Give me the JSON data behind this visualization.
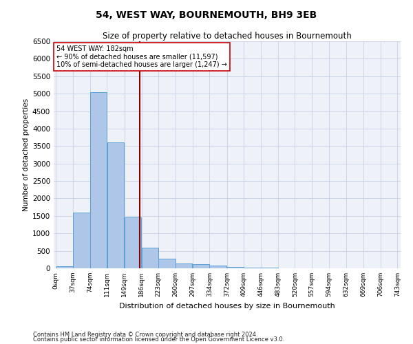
{
  "title": "54, WEST WAY, BOURNEMOUTH, BH9 3EB",
  "subtitle": "Size of property relative to detached houses in Bournemouth",
  "xlabel": "Distribution of detached houses by size in Bournemouth",
  "ylabel": "Number of detached properties",
  "footnote1": "Contains HM Land Registry data © Crown copyright and database right 2024.",
  "footnote2": "Contains public sector information licensed under the Open Government Licence v3.0.",
  "bin_edges": [
    0,
    37,
    74,
    111,
    149,
    186,
    223,
    260,
    297,
    334,
    372,
    409,
    446,
    483,
    520,
    557,
    594,
    632,
    669,
    706,
    743
  ],
  "bar_heights": [
    50,
    1600,
    5050,
    3600,
    1450,
    600,
    280,
    140,
    110,
    80,
    40,
    20,
    10,
    5,
    3,
    2,
    1,
    1,
    0,
    0
  ],
  "bar_color": "#aec6e8",
  "bar_edge_color": "#5a9fd4",
  "grid_color": "#ccd6e8",
  "background_color": "#eef2f8",
  "property_size": 182,
  "vline_color": "#8b0000",
  "annotation_text": "54 WEST WAY: 182sqm\n← 90% of detached houses are smaller (11,597)\n10% of semi-detached houses are larger (1,247) →",
  "annotation_box_color": "#ffffff",
  "annotation_box_edge": "#cc0000",
  "ylim": [
    0,
    6500
  ],
  "yticks": [
    0,
    500,
    1000,
    1500,
    2000,
    2500,
    3000,
    3500,
    4000,
    4500,
    5000,
    5500,
    6000,
    6500
  ]
}
